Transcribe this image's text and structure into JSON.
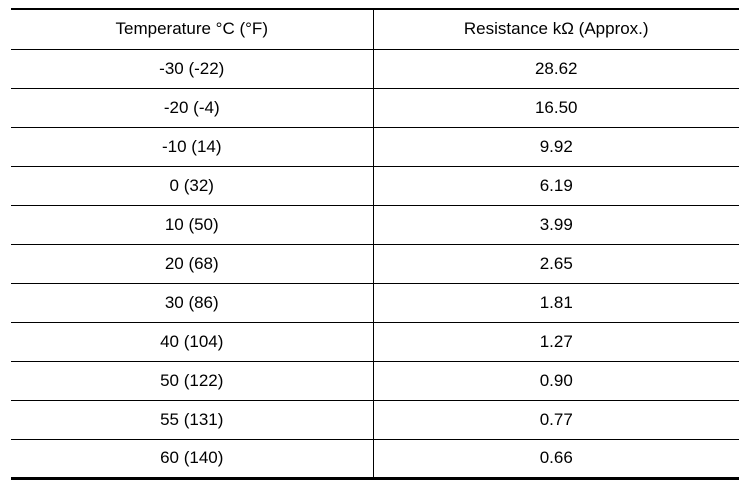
{
  "table": {
    "headers": [
      "Temperature °C (°F)",
      "Resistance kΩ (Approx.)"
    ],
    "rows": [
      [
        "-30 (-22)",
        "28.62"
      ],
      [
        "-20 (-4)",
        "16.50"
      ],
      [
        "-10 (14)",
        "9.92"
      ],
      [
        "0 (32)",
        "6.19"
      ],
      [
        "10 (50)",
        "3.99"
      ],
      [
        "20 (68)",
        "2.65"
      ],
      [
        "30 (86)",
        "1.81"
      ],
      [
        "40 (104)",
        "1.27"
      ],
      [
        "50 (122)",
        "0.90"
      ],
      [
        "55 (131)",
        "0.77"
      ],
      [
        "60 (140)",
        "0.66"
      ]
    ]
  }
}
